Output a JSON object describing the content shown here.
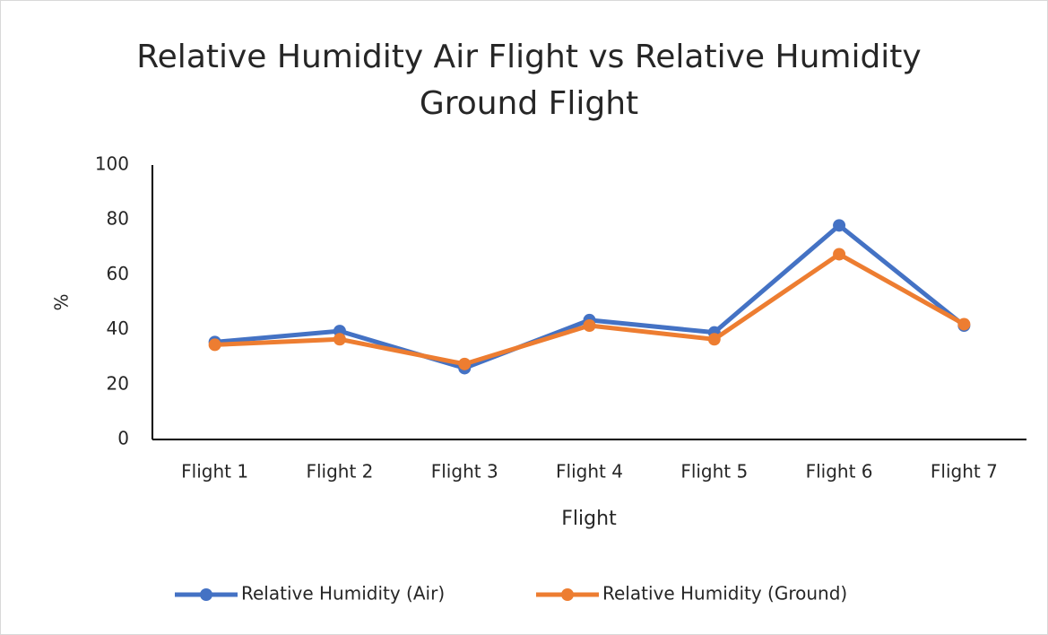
{
  "chart_data": {
    "type": "line",
    "title": "Relative Humidity Air Flight vs Relative Humidity Ground Flight",
    "x_label": "Flight",
    "y_label": "%",
    "categories": [
      "Flight 1",
      "Flight 2",
      "Flight 3",
      "Flight 4",
      "Flight 5",
      "Flight 6",
      "Flight 7"
    ],
    "series": [
      {
        "name": "Relative Humidity (Air)",
        "color": "#4472c4",
        "values": [
          35.5,
          39.5,
          26,
          43.5,
          39,
          78,
          41.5
        ]
      },
      {
        "name": "Relative Humidity (Ground)",
        "color": "#ed7d31",
        "values": [
          34.5,
          36.5,
          27.5,
          41.5,
          36.5,
          67.5,
          42
        ]
      }
    ],
    "ylim": [
      0,
      100
    ],
    "yticks": [
      0,
      20,
      40,
      60,
      80,
      100
    ],
    "grid": false,
    "legend": "bottom"
  }
}
